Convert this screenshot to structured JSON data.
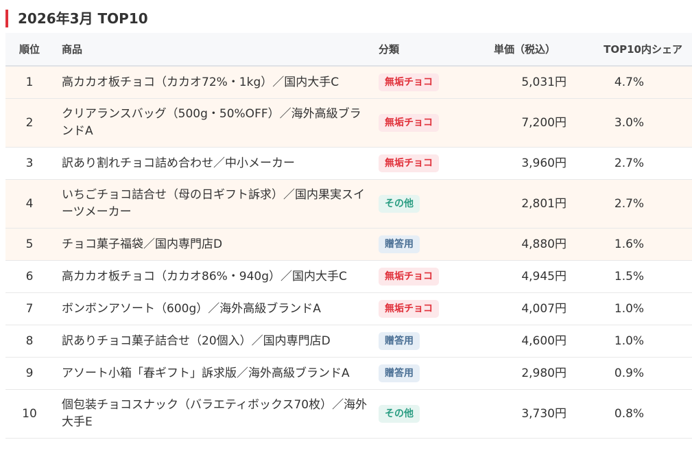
{
  "title": "2026年3月 TOP10",
  "columns": {
    "rank": "順位",
    "product": "商品",
    "category": "分類",
    "price": "単価（税込）",
    "share": "TOP10内シェア"
  },
  "badge_colors": {
    "無垢チョコ": {
      "bg": "#fde8ea",
      "fg": "#e0303a"
    },
    "その他": {
      "bg": "#e6f5f1",
      "fg": "#2a9d82"
    },
    "贈答用": {
      "bg": "#e6eef6",
      "fg": "#4a6f94"
    }
  },
  "rows": [
    {
      "rank": "1",
      "product": "高カカオ板チョコ（カカオ72%・1kg）／国内大手C",
      "category": "無垢チョコ",
      "price": "5,031円",
      "share": "4.7%",
      "highlight": true
    },
    {
      "rank": "2",
      "product": "クリアランスバッグ（500g・50%OFF）／海外高級ブランドA",
      "category": "無垢チョコ",
      "price": "7,200円",
      "share": "3.0%",
      "highlight": true
    },
    {
      "rank": "3",
      "product": "訳あり割れチョコ詰め合わせ／中小メーカー",
      "category": "無垢チョコ",
      "price": "3,960円",
      "share": "2.7%",
      "highlight": false
    },
    {
      "rank": "4",
      "product": "いちごチョコ詰合せ（母の日ギフト訴求）／国内果実スイーツメーカー",
      "category": "その他",
      "price": "2,801円",
      "share": "2.7%",
      "highlight": true
    },
    {
      "rank": "5",
      "product": "チョコ菓子福袋／国内専門店D",
      "category": "贈答用",
      "price": "4,880円",
      "share": "1.6%",
      "highlight": true
    },
    {
      "rank": "6",
      "product": "高カカオ板チョコ（カカオ86%・940g）／国内大手C",
      "category": "無垢チョコ",
      "price": "4,945円",
      "share": "1.5%",
      "highlight": false
    },
    {
      "rank": "7",
      "product": "ボンボンアソート（600g）／海外高級ブランドA",
      "category": "無垢チョコ",
      "price": "4,007円",
      "share": "1.0%",
      "highlight": false
    },
    {
      "rank": "8",
      "product": "訳ありチョコ菓子詰合せ（20個入）／国内専門店D",
      "category": "贈答用",
      "price": "4,600円",
      "share": "1.0%",
      "highlight": false
    },
    {
      "rank": "9",
      "product": "アソート小箱「春ギフト」訴求版／海外高級ブランドA",
      "category": "贈答用",
      "price": "2,980円",
      "share": "0.9%",
      "highlight": false
    },
    {
      "rank": "10",
      "product": "個包装チョコスナック（バラエティボックス70枚）／海外大手E",
      "category": "その他",
      "price": "3,730円",
      "share": "0.8%",
      "highlight": false
    }
  ]
}
